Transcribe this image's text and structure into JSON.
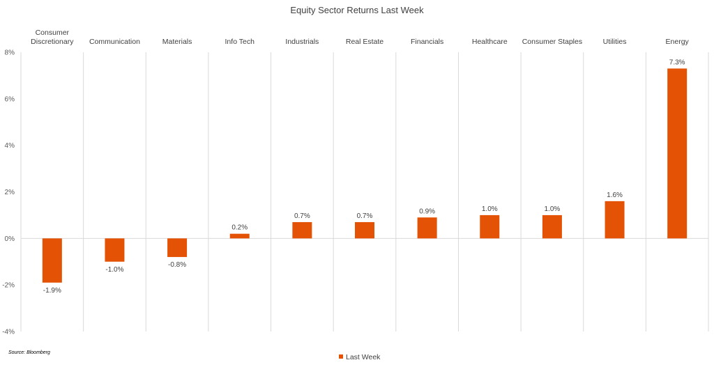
{
  "chart_data": {
    "type": "bar",
    "title": "Equity Sector Returns Last Week",
    "categories": [
      [
        "Consumer",
        "Discretionary"
      ],
      [
        "Communication"
      ],
      [
        "Materials"
      ],
      [
        "Info Tech"
      ],
      [
        "Industrials"
      ],
      [
        "Real Estate"
      ],
      [
        "Financials"
      ],
      [
        "Healthcare"
      ],
      [
        "Consumer Staples"
      ],
      [
        "Utilities"
      ],
      [
        "Energy"
      ]
    ],
    "series": [
      {
        "name": "Last Week",
        "color": "#E35205",
        "values": [
          -1.9,
          -1.0,
          -0.8,
          0.2,
          0.7,
          0.7,
          0.9,
          1.0,
          1.0,
          1.6,
          7.3
        ],
        "labels": [
          "-1.9%",
          "-1.0%",
          "-0.8%",
          "0.2%",
          "0.7%",
          "0.7%",
          "0.9%",
          "1.0%",
          "1.0%",
          "1.6%",
          "7.3%"
        ]
      }
    ],
    "ylim": [
      -4,
      8
    ],
    "yticks": [
      -4,
      -2,
      0,
      2,
      4,
      6,
      8
    ],
    "ytick_labels": [
      "-4%",
      "-2%",
      "0%",
      "2%",
      "4%",
      "6%",
      "8%"
    ],
    "xlabel": "",
    "ylabel": "",
    "grid": "vertical category separators",
    "legend": "bottom-center",
    "source": "Source: Bloomberg"
  }
}
